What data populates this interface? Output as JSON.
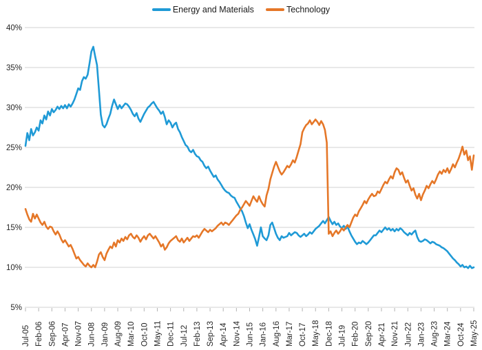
{
  "chart_data": {
    "type": "line",
    "title": "",
    "xlabel": "",
    "ylabel": "",
    "grid": "horizontal",
    "legend_position": "top-center",
    "ylim": [
      5,
      40
    ],
    "y_ticks": [
      40,
      35,
      30,
      25,
      20,
      15,
      10,
      5
    ],
    "y_tick_labels": [
      "40%",
      "35%",
      "30%",
      "25%",
      "20%",
      "15%",
      "10%",
      "5%"
    ],
    "x_unit": "monthly",
    "x_tick_labels": [
      "Jul-05",
      "Feb-06",
      "Sep-06",
      "Apr-07",
      "Nov-07",
      "Jun-08",
      "Jan-09",
      "Aug-09",
      "Mar-10",
      "Oct-10",
      "May-11",
      "Dec-11",
      "Jul-12",
      "Feb-13",
      "Sep-13",
      "Apr-14",
      "Nov-14",
      "Jun-15",
      "Jan-16",
      "Aug-16",
      "Mar-17",
      "Oct-17",
      "May-18",
      "Dec-18",
      "Jul-19",
      "Feb-20",
      "Sep-20",
      "Apr-21",
      "Nov-21",
      "Jun-22",
      "Jan-23",
      "Aug-23",
      "Mar-24",
      "Oct-24",
      "May-25"
    ],
    "colors": {
      "gridline": "#d9d9d9",
      "tick": "#b3b3b3",
      "axis_text": "#262626",
      "legend_text": "#1a1a1a"
    },
    "series": [
      {
        "name": "Energy and Materials",
        "color": "#1f9ad6",
        "values": [
          25.2,
          26.8,
          25.9,
          27.3,
          26.5,
          26.9,
          27.5,
          27.1,
          28.4,
          28.0,
          29.0,
          28.5,
          29.5,
          29.0,
          29.8,
          29.4,
          29.7,
          30.1,
          29.8,
          30.2,
          29.9,
          30.3,
          29.9,
          30.4,
          30.1,
          30.5,
          31.0,
          31.7,
          32.4,
          32.2,
          33.3,
          33.8,
          33.6,
          34.1,
          35.5,
          37.0,
          37.6,
          36.4,
          35.3,
          32.2,
          29.1,
          27.8,
          27.5,
          27.9,
          28.6,
          29.2,
          30.2,
          31.0,
          30.4,
          29.8,
          30.3,
          29.9,
          30.2,
          30.5,
          30.4,
          30.1,
          29.7,
          29.2,
          28.9,
          29.3,
          28.6,
          28.2,
          28.7,
          29.2,
          29.6,
          30.0,
          30.2,
          30.5,
          30.7,
          30.3,
          29.9,
          29.6,
          29.2,
          29.5,
          28.8,
          27.9,
          28.4,
          28.1,
          27.5,
          27.9,
          28.1,
          27.3,
          26.9,
          26.3,
          25.8,
          25.3,
          25.1,
          24.6,
          24.4,
          24.7,
          24.2,
          23.9,
          23.8,
          23.4,
          23.2,
          22.7,
          22.4,
          22.6,
          22.1,
          21.7,
          21.3,
          21.5,
          21.0,
          20.7,
          20.3,
          19.9,
          19.6,
          19.4,
          19.3,
          19.0,
          18.8,
          18.7,
          18.2,
          17.8,
          17.4,
          17.0,
          16.4,
          15.6,
          14.9,
          15.4,
          14.7,
          14.1,
          13.5,
          12.7,
          13.8,
          15.0,
          13.9,
          13.6,
          13.4,
          14.0,
          15.3,
          15.6,
          14.9,
          14.2,
          13.7,
          13.4,
          13.9,
          13.7,
          13.8,
          13.9,
          14.3,
          14.0,
          14.2,
          14.4,
          14.3,
          14.0,
          13.8,
          14.0,
          14.2,
          13.9,
          14.1,
          14.4,
          14.2,
          14.5,
          14.8,
          15.0,
          15.2,
          15.5,
          15.8,
          15.5,
          15.9,
          16.3,
          15.8,
          15.4,
          15.7,
          15.3,
          15.5,
          15.1,
          14.9,
          15.2,
          14.8,
          15.1,
          14.5,
          14.0,
          13.6,
          13.2,
          12.9,
          13.1,
          13.0,
          13.3,
          13.1,
          12.9,
          13.1,
          13.4,
          13.7,
          14.0,
          14.0,
          14.3,
          14.6,
          14.4,
          14.7,
          15.0,
          14.7,
          14.9,
          14.6,
          14.8,
          14.5,
          14.8,
          14.6,
          14.9,
          14.7,
          14.4,
          14.2,
          14.0,
          14.3,
          14.1,
          14.4,
          14.6,
          13.8,
          13.3,
          13.2,
          13.3,
          13.5,
          13.4,
          13.2,
          13.0,
          13.2,
          13.1,
          12.9,
          12.8,
          12.7,
          12.5,
          12.4,
          12.2,
          12.0,
          11.7,
          11.4,
          11.1,
          10.9,
          10.6,
          10.4,
          10.1,
          10.3,
          10.0,
          10.1,
          9.9,
          10.2,
          9.9,
          10.0
        ]
      },
      {
        "name": "Technology",
        "color": "#e57728",
        "values": [
          17.3,
          16.6,
          16.0,
          15.7,
          16.7,
          16.1,
          16.6,
          16.1,
          15.6,
          15.3,
          15.7,
          15.1,
          14.8,
          15.1,
          15.0,
          14.5,
          14.1,
          14.5,
          14.1,
          13.5,
          13.1,
          13.4,
          13.0,
          12.6,
          12.8,
          12.3,
          11.7,
          11.1,
          11.3,
          10.9,
          10.6,
          10.3,
          10.1,
          10.5,
          10.2,
          10.0,
          10.3,
          10.0,
          10.7,
          11.6,
          11.9,
          11.3,
          10.9,
          11.7,
          12.2,
          12.6,
          12.4,
          13.1,
          12.6,
          13.4,
          13.1,
          13.6,
          13.3,
          13.8,
          13.5,
          14.0,
          14.2,
          13.8,
          13.6,
          14.0,
          13.7,
          13.2,
          13.6,
          13.9,
          13.5,
          14.0,
          14.2,
          13.9,
          13.6,
          13.9,
          13.5,
          13.1,
          12.6,
          12.9,
          12.2,
          12.5,
          13.0,
          13.3,
          13.5,
          13.7,
          13.9,
          13.4,
          13.2,
          13.6,
          13.1,
          13.4,
          13.7,
          13.3,
          13.6,
          13.9,
          13.8,
          14.0,
          13.7,
          14.1,
          14.5,
          14.8,
          14.6,
          14.4,
          14.7,
          14.5,
          14.7,
          14.9,
          15.2,
          15.4,
          15.6,
          15.3,
          15.6,
          15.5,
          15.3,
          15.6,
          15.9,
          16.2,
          16.5,
          16.7,
          17.2,
          17.5,
          17.9,
          18.3,
          18.0,
          17.7,
          18.3,
          18.9,
          18.5,
          18.2,
          18.9,
          18.3,
          17.9,
          17.6,
          19.0,
          19.8,
          21.0,
          21.8,
          22.6,
          23.2,
          22.6,
          22.0,
          21.6,
          21.9,
          22.3,
          22.7,
          22.5,
          22.9,
          23.4,
          23.1,
          23.8,
          24.6,
          25.4,
          26.9,
          27.4,
          27.8,
          28.0,
          28.4,
          27.9,
          28.2,
          28.5,
          28.2,
          27.8,
          28.3,
          27.9,
          27.2,
          25.6,
          14.2,
          14.5,
          13.9,
          14.3,
          14.6,
          14.2,
          14.5,
          14.9,
          14.6,
          15.0,
          15.3,
          15.0,
          15.6,
          16.2,
          16.6,
          16.4,
          17.0,
          17.4,
          17.8,
          18.3,
          18.0,
          18.5,
          18.9,
          19.2,
          18.9,
          19.0,
          19.5,
          19.3,
          19.8,
          20.3,
          20.7,
          20.5,
          21.0,
          21.4,
          21.1,
          21.9,
          22.4,
          22.2,
          21.6,
          21.9,
          21.2,
          20.6,
          20.9,
          20.2,
          19.6,
          19.9,
          19.1,
          18.6,
          19.2,
          18.4,
          19.1,
          19.6,
          20.2,
          19.9,
          20.4,
          20.8,
          20.5,
          21.0,
          21.6,
          22.0,
          21.7,
          22.2,
          21.9,
          22.4,
          21.8,
          22.3,
          22.9,
          22.5,
          23.1,
          23.6,
          24.3,
          25.1,
          24.1,
          24.6,
          23.4,
          23.9,
          22.2,
          24.0
        ]
      }
    ]
  }
}
